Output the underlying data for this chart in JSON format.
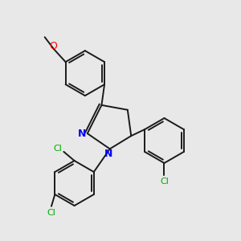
{
  "background_color": "#e8e8e8",
  "bond_color": "#1a1a1a",
  "nitrogen_color": "#0000ff",
  "oxygen_color": "#ff0000",
  "chlorine_color": "#00aa00",
  "font_size_atom": 8,
  "line_width": 1.4,
  "figsize": [
    3.0,
    3.0
  ],
  "dpi": 100,
  "xlim": [
    0,
    10
  ],
  "ylim": [
    0,
    10
  ]
}
